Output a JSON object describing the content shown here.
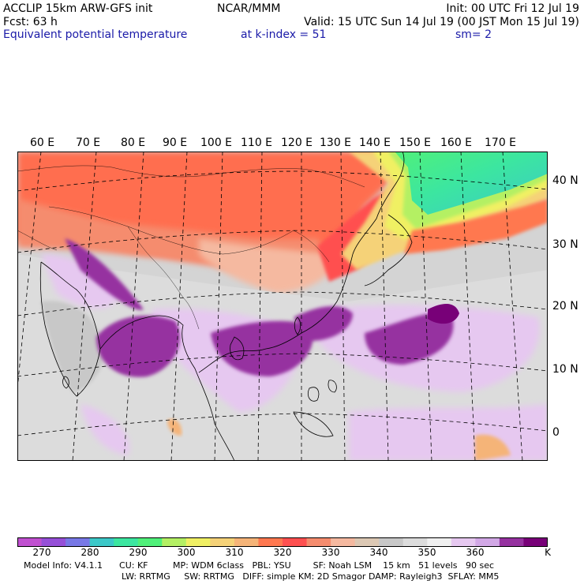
{
  "header": {
    "line1_left": "ACCLIP 15km ARW-GFS init",
    "line1_center": "NCAR/MMM",
    "line1_right": "Init: 00 UTC Fri 12 Jul 19",
    "line2_left": "Fcst:   63 h",
    "line2_right": "Valid: 15 UTC Sun 14 Jul 19 (00 JST Mon 15 Jul 19)",
    "line3_left": "Equivalent potential temperature",
    "line3_center": "at k-index =  51",
    "line3_right": "sm= 2"
  },
  "map": {
    "lon_labels": [
      "60 E",
      "70 E",
      "80 E",
      "90 E",
      "100 E",
      "110 E",
      "120 E",
      "130 E",
      "140 E",
      "150 E",
      "160 E",
      "170 E"
    ],
    "lat_labels": [
      "40 N",
      "30 N",
      "20 N",
      "10 N",
      "0"
    ]
  },
  "colorbar": {
    "unit": "K",
    "tick_labels": [
      "270",
      "280",
      "290",
      "300",
      "310",
      "320",
      "330",
      "340",
      "350",
      "360"
    ],
    "colors": [
      "#c050d0",
      "#9650d8",
      "#7878e6",
      "#3cc8c8",
      "#3ce6a0",
      "#50f07a",
      "#b4f064",
      "#f0f064",
      "#f5d278",
      "#f5b478",
      "#ff7850",
      "#ff5050",
      "#f58c6e",
      "#f5b9a0",
      "#dcc8b4",
      "#c8c8c8",
      "#dcdcdc",
      "#f0f0f0",
      "#e6c8f0",
      "#d2a8e6",
      "#9632a0",
      "#780078"
    ]
  },
  "footer": {
    "line1": "Model Info: V4.1.1      CU: KF         MP: WDM 6class   PBL: YSU        SF: Noah LSM    15 km   51 levels   90 sec",
    "line2": "LW: RRTMG     SW: RRTMG   DIFF: simple KM: 2D Smagor DAMP: Rayleigh3  SFLAY: MM5"
  }
}
